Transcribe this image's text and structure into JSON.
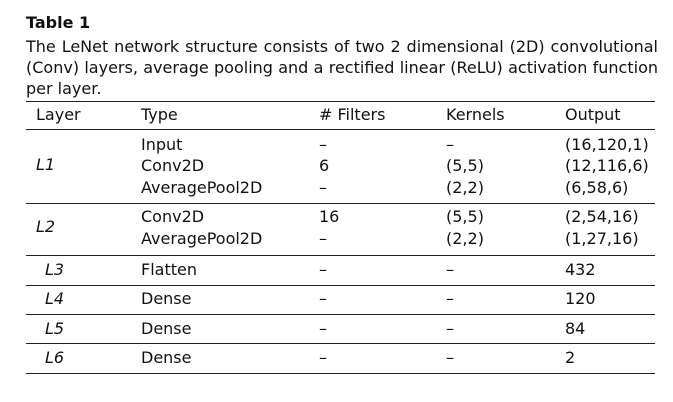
{
  "table": {
    "label": "Table 1",
    "caption": "The LeNet network structure consists of two 2 dimensional (2D) convolutional (Conv) layers, average pooling and a rectified linear (ReLU) activation function per layer.",
    "headers": [
      "Layer",
      "Type",
      "# Filters",
      "Kernels",
      "Output"
    ],
    "groups": [
      {
        "layer": "L1",
        "rows": [
          {
            "type": "Input",
            "filters": "–",
            "kernels": "–",
            "output": "(16,120,1)"
          },
          {
            "type": "Conv2D",
            "filters": "6",
            "kernels": "(5,5)",
            "output": "(12,116,6)"
          },
          {
            "type": "AveragePool2D",
            "filters": "–",
            "kernels": "(2,2)",
            "output": "(6,58,6)"
          }
        ]
      },
      {
        "layer": "L2",
        "rows": [
          {
            "type": "Conv2D",
            "filters": "16",
            "kernels": "(5,5)",
            "output": "(2,54,16)"
          },
          {
            "type": "AveragePool2D",
            "filters": "–",
            "kernels": "(2,2)",
            "output": "(1,27,16)"
          }
        ]
      },
      {
        "layer": "L3",
        "rows": [
          {
            "type": "Flatten",
            "filters": "–",
            "kernels": "–",
            "output": "432"
          }
        ]
      },
      {
        "layer": "L4",
        "rows": [
          {
            "type": "Dense",
            "filters": "–",
            "kernels": "–",
            "output": "120"
          }
        ]
      },
      {
        "layer": "L5",
        "rows": [
          {
            "type": "Dense",
            "filters": "–",
            "kernels": "–",
            "output": "84"
          }
        ]
      },
      {
        "layer": "L6",
        "rows": [
          {
            "type": "Dense",
            "filters": "–",
            "kernels": "–",
            "output": "2"
          }
        ]
      }
    ]
  }
}
